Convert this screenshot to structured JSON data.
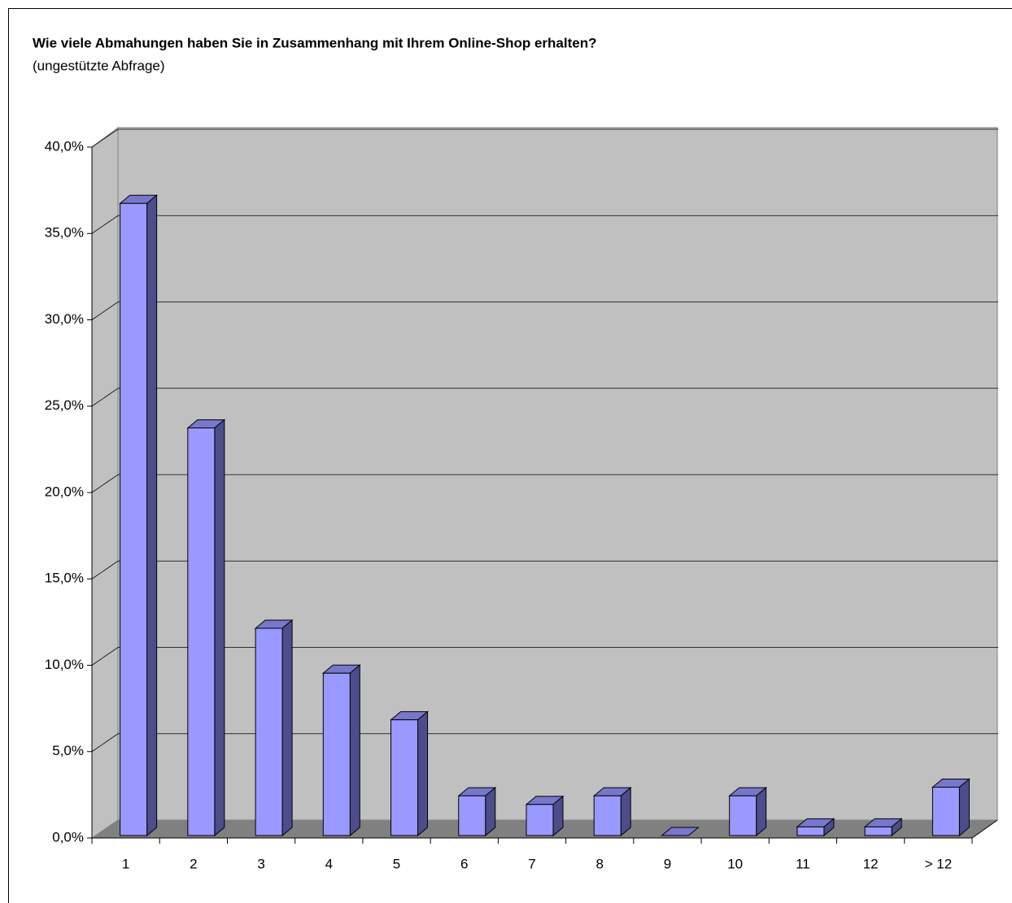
{
  "chart_data": {
    "type": "bar3d",
    "title": "Wie viele Abmahungen haben Sie in Zusammenhang mit Ihrem Online-Shop erhalten?",
    "subtitle": "(ungestützte Abfrage)",
    "categories": [
      "1",
      "2",
      "3",
      "4",
      "5",
      "6",
      "7",
      "8",
      "9",
      "10",
      "11",
      "12",
      "> 12"
    ],
    "values": [
      36.6,
      23.6,
      12.0,
      9.4,
      6.7,
      2.3,
      1.8,
      2.3,
      0,
      2.3,
      0.5,
      0.5,
      2.8
    ],
    "color": "#9999ff",
    "ylim": [
      0,
      40
    ],
    "yticks": [
      {
        "value": 0,
        "label": "0,0%"
      },
      {
        "value": 5,
        "label": "5,0%"
      },
      {
        "value": 10,
        "label": "10,0%"
      },
      {
        "value": 15,
        "label": "15,0%"
      },
      {
        "value": 20,
        "label": "20,0%"
      },
      {
        "value": 25,
        "label": "25,0%"
      },
      {
        "value": 30,
        "label": "30,0%"
      },
      {
        "value": 35,
        "label": "35,0%"
      },
      {
        "value": 40,
        "label": "40,0%"
      }
    ],
    "grid": true
  }
}
